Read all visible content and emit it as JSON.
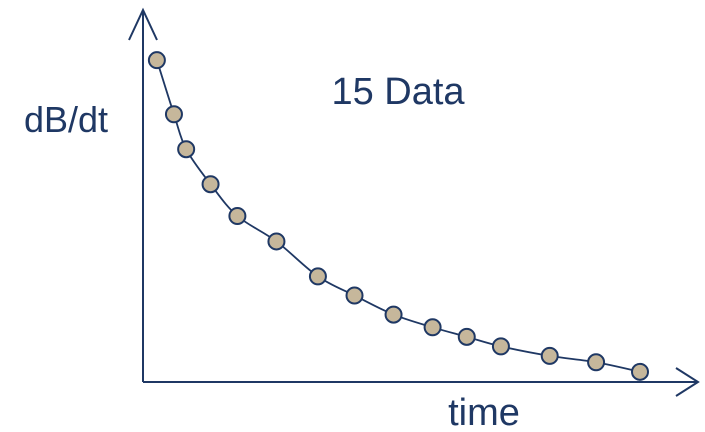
{
  "chart_data": {
    "type": "scatter",
    "title": "15 Data",
    "xlabel": "time",
    "ylabel": "dB/dt",
    "grid": false,
    "axis_ticks": false,
    "colors": {
      "axis": "#1f3864",
      "curve": "#1f3864",
      "marker_fill": "#c6b79b",
      "marker_stroke": "#1f3864",
      "text": "#1f3864"
    },
    "series": [
      {
        "name": "",
        "points": [
          {
            "x": 0.01,
            "y": 0.99
          },
          {
            "x": 0.045,
            "y": 0.82
          },
          {
            "x": 0.07,
            "y": 0.71
          },
          {
            "x": 0.12,
            "y": 0.6
          },
          {
            "x": 0.175,
            "y": 0.5
          },
          {
            "x": 0.255,
            "y": 0.42
          },
          {
            "x": 0.34,
            "y": 0.31
          },
          {
            "x": 0.415,
            "y": 0.25
          },
          {
            "x": 0.495,
            "y": 0.19
          },
          {
            "x": 0.575,
            "y": 0.15
          },
          {
            "x": 0.645,
            "y": 0.12
          },
          {
            "x": 0.715,
            "y": 0.09
          },
          {
            "x": 0.815,
            "y": 0.06
          },
          {
            "x": 0.91,
            "y": 0.04
          },
          {
            "x": 1.0,
            "y": 0.01
          }
        ]
      }
    ],
    "curve": "smooth decay through points"
  }
}
